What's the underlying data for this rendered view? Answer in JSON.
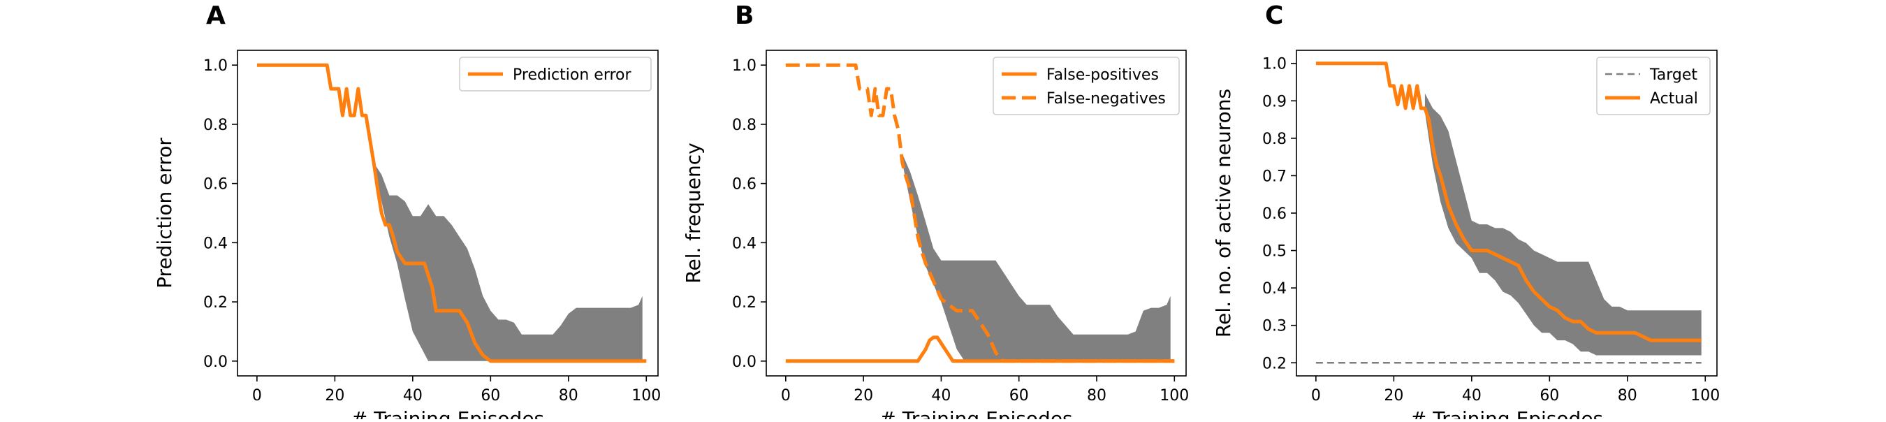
{
  "chart_data": [
    {
      "panel": "A",
      "type": "line",
      "xlabel": "# Training Episodes",
      "ylabel": "Prediction error",
      "xlim": [
        -5,
        103
      ],
      "ylim": [
        -0.05,
        1.05
      ],
      "xticks": [
        0,
        20,
        40,
        60,
        80,
        100
      ],
      "yticks": [
        0.0,
        0.2,
        0.4,
        0.6,
        0.8,
        1.0
      ],
      "ytick_labels": [
        "0.0",
        "0.2",
        "0.4",
        "0.6",
        "0.8",
        "1.0"
      ],
      "legend_position": "top-right",
      "series": [
        {
          "name": "Prediction error",
          "style": "solid",
          "color": "#ff7f0e",
          "x": [
            0,
            18,
            19,
            20,
            21,
            22,
            23,
            24,
            25,
            26,
            27,
            28,
            29,
            30,
            31,
            32,
            33,
            34,
            35,
            36,
            37,
            38,
            40,
            42,
            43,
            44,
            45,
            46,
            48,
            50,
            52,
            54,
            56,
            58,
            60,
            100
          ],
          "y": [
            1.0,
            1.0,
            0.92,
            0.92,
            0.92,
            0.83,
            0.92,
            0.83,
            0.83,
            0.92,
            0.83,
            0.83,
            0.75,
            0.67,
            0.58,
            0.5,
            0.46,
            0.46,
            0.42,
            0.37,
            0.35,
            0.33,
            0.33,
            0.33,
            0.33,
            0.29,
            0.25,
            0.17,
            0.17,
            0.17,
            0.17,
            0.13,
            0.06,
            0.02,
            0.0,
            0.0
          ]
        }
      ],
      "band": {
        "color": "#808080",
        "x": [
          30,
          32,
          34,
          36,
          38,
          40,
          42,
          44,
          46,
          48,
          50,
          52,
          54,
          56,
          58,
          60,
          62,
          64,
          66,
          68,
          70,
          72,
          74,
          76,
          78,
          80,
          82,
          84,
          86,
          88,
          90,
          92,
          94,
          96,
          98,
          99
        ],
        "upper": [
          0.67,
          0.63,
          0.56,
          0.56,
          0.54,
          0.49,
          0.49,
          0.53,
          0.49,
          0.49,
          0.46,
          0.42,
          0.38,
          0.31,
          0.22,
          0.17,
          0.14,
          0.14,
          0.13,
          0.09,
          0.09,
          0.09,
          0.09,
          0.09,
          0.12,
          0.16,
          0.18,
          0.18,
          0.18,
          0.18,
          0.18,
          0.18,
          0.18,
          0.18,
          0.19,
          0.22
        ],
        "lower": [
          0.65,
          0.54,
          0.42,
          0.33,
          0.21,
          0.1,
          0.05,
          0.0,
          0.0,
          0.0,
          0.0,
          0.0,
          0.0,
          0.0,
          0.0,
          0.0,
          0.0,
          0.0,
          0.0,
          0.0,
          0.0,
          0.0,
          0.0,
          0.0,
          0.0,
          0.0,
          0.0,
          0.0,
          0.0,
          0.0,
          0.0,
          0.0,
          0.0,
          0.0,
          0.0,
          0.0
        ]
      }
    },
    {
      "panel": "B",
      "type": "line",
      "xlabel": "# Training Episodes",
      "ylabel": "Rel. frequency",
      "xlim": [
        -5,
        103
      ],
      "ylim": [
        -0.05,
        1.05
      ],
      "xticks": [
        0,
        20,
        40,
        60,
        80,
        100
      ],
      "yticks": [
        0.0,
        0.2,
        0.4,
        0.6,
        0.8,
        1.0
      ],
      "ytick_labels": [
        "0.0",
        "0.2",
        "0.4",
        "0.6",
        "0.8",
        "1.0"
      ],
      "legend_position": "top-right",
      "series": [
        {
          "name": "False-positives",
          "style": "solid",
          "color": "#ff7f0e",
          "x": [
            0,
            33,
            34,
            35,
            36,
            37,
            38,
            39,
            40,
            41,
            42,
            43,
            100
          ],
          "y": [
            0.0,
            0.0,
            0.0,
            0.02,
            0.04,
            0.07,
            0.08,
            0.08,
            0.06,
            0.04,
            0.02,
            0.0,
            0.0
          ]
        },
        {
          "name": "False-negatives",
          "style": "dashed",
          "color": "#ff7f0e",
          "x": [
            0,
            18,
            19,
            20,
            21,
            22,
            23,
            24,
            25,
            26,
            27,
            28,
            29,
            30,
            31,
            32,
            33,
            34,
            35,
            36,
            37,
            38,
            39,
            40,
            41,
            42,
            43,
            44,
            45,
            46,
            48,
            50,
            52,
            53,
            54,
            55,
            56,
            57,
            100
          ],
          "y": [
            1.0,
            1.0,
            0.92,
            0.92,
            0.92,
            0.83,
            0.92,
            0.83,
            0.83,
            0.92,
            0.92,
            0.83,
            0.78,
            0.67,
            0.62,
            0.58,
            0.5,
            0.42,
            0.37,
            0.33,
            0.3,
            0.27,
            0.24,
            0.21,
            0.2,
            0.19,
            0.18,
            0.17,
            0.17,
            0.17,
            0.17,
            0.13,
            0.09,
            0.06,
            0.03,
            0.01,
            0.0,
            0.0,
            0.0
          ]
        }
      ],
      "band": {
        "color": "#808080",
        "x": [
          30,
          32,
          34,
          36,
          38,
          40,
          42,
          44,
          46,
          48,
          50,
          52,
          54,
          56,
          58,
          60,
          62,
          64,
          66,
          68,
          70,
          72,
          74,
          76,
          78,
          80,
          82,
          84,
          86,
          88,
          90,
          92,
          94,
          96,
          98,
          99
        ],
        "upper": [
          0.7,
          0.64,
          0.56,
          0.47,
          0.38,
          0.34,
          0.34,
          0.34,
          0.34,
          0.34,
          0.34,
          0.34,
          0.34,
          0.3,
          0.26,
          0.22,
          0.19,
          0.19,
          0.19,
          0.19,
          0.15,
          0.12,
          0.09,
          0.09,
          0.09,
          0.09,
          0.09,
          0.09,
          0.09,
          0.09,
          0.1,
          0.17,
          0.18,
          0.18,
          0.19,
          0.22
        ],
        "lower": [
          0.67,
          0.54,
          0.42,
          0.32,
          0.26,
          0.2,
          0.12,
          0.04,
          0.0,
          0.0,
          0.0,
          0.0,
          0.0,
          0.0,
          0.0,
          0.0,
          0.0,
          0.0,
          0.0,
          0.0,
          0.0,
          0.0,
          0.0,
          0.0,
          0.0,
          0.0,
          0.0,
          0.0,
          0.0,
          0.0,
          0.0,
          0.0,
          0.0,
          0.0,
          0.0,
          0.0
        ]
      }
    },
    {
      "panel": "C",
      "type": "line",
      "xlabel": "# Training Episodes",
      "ylabel": "Rel. no. of active neurons",
      "xlim": [
        -5,
        103
      ],
      "ylim": [
        0.165,
        1.035
      ],
      "xticks": [
        0,
        20,
        40,
        60,
        80,
        100
      ],
      "yticks": [
        0.2,
        0.3,
        0.4,
        0.5,
        0.6,
        0.7,
        0.8,
        0.9,
        1.0
      ],
      "ytick_labels": [
        "0.2",
        "0.3",
        "0.4",
        "0.5",
        "0.6",
        "0.7",
        "0.8",
        "0.9",
        "1.0"
      ],
      "legend_position": "top-right",
      "series": [
        {
          "name": "Target",
          "style": "dashed",
          "color": "#7f7f7f",
          "x": [
            0,
            99
          ],
          "y": [
            0.2,
            0.2
          ]
        },
        {
          "name": "Actual",
          "style": "solid",
          "color": "#ff7f0e",
          "x": [
            0,
            18,
            19,
            20,
            21,
            22,
            23,
            24,
            25,
            26,
            27,
            28,
            29,
            30,
            31,
            32,
            33,
            34,
            36,
            38,
            40,
            42,
            44,
            46,
            48,
            50,
            52,
            54,
            56,
            58,
            60,
            62,
            64,
            66,
            68,
            70,
            72,
            74,
            76,
            78,
            80,
            82,
            84,
            86,
            88,
            90,
            92,
            94,
            96,
            98,
            99
          ],
          "y": [
            1.0,
            1.0,
            0.94,
            0.94,
            0.89,
            0.94,
            0.88,
            0.94,
            0.88,
            0.94,
            0.88,
            0.88,
            0.85,
            0.78,
            0.73,
            0.7,
            0.66,
            0.62,
            0.57,
            0.53,
            0.5,
            0.5,
            0.5,
            0.49,
            0.48,
            0.47,
            0.46,
            0.42,
            0.39,
            0.37,
            0.35,
            0.34,
            0.32,
            0.31,
            0.31,
            0.29,
            0.28,
            0.28,
            0.28,
            0.28,
            0.28,
            0.28,
            0.27,
            0.26,
            0.26,
            0.26,
            0.26,
            0.26,
            0.26,
            0.26,
            0.26
          ]
        }
      ],
      "band": {
        "color": "#808080",
        "x": [
          28,
          30,
          32,
          34,
          36,
          38,
          40,
          42,
          44,
          46,
          48,
          50,
          52,
          54,
          56,
          58,
          60,
          62,
          64,
          66,
          68,
          70,
          72,
          74,
          76,
          78,
          80,
          82,
          84,
          86,
          88,
          90,
          92,
          94,
          96,
          98,
          99
        ],
        "upper": [
          0.92,
          0.88,
          0.86,
          0.82,
          0.74,
          0.66,
          0.58,
          0.57,
          0.57,
          0.56,
          0.56,
          0.55,
          0.53,
          0.52,
          0.5,
          0.49,
          0.48,
          0.47,
          0.47,
          0.47,
          0.47,
          0.47,
          0.42,
          0.37,
          0.35,
          0.35,
          0.34,
          0.34,
          0.34,
          0.34,
          0.34,
          0.34,
          0.34,
          0.34,
          0.34,
          0.34,
          0.34
        ],
        "lower": [
          0.87,
          0.73,
          0.63,
          0.56,
          0.52,
          0.5,
          0.48,
          0.44,
          0.44,
          0.42,
          0.39,
          0.38,
          0.36,
          0.33,
          0.3,
          0.28,
          0.28,
          0.26,
          0.26,
          0.25,
          0.23,
          0.23,
          0.22,
          0.22,
          0.22,
          0.22,
          0.22,
          0.22,
          0.22,
          0.22,
          0.22,
          0.22,
          0.22,
          0.22,
          0.22,
          0.22,
          0.22
        ]
      }
    }
  ]
}
